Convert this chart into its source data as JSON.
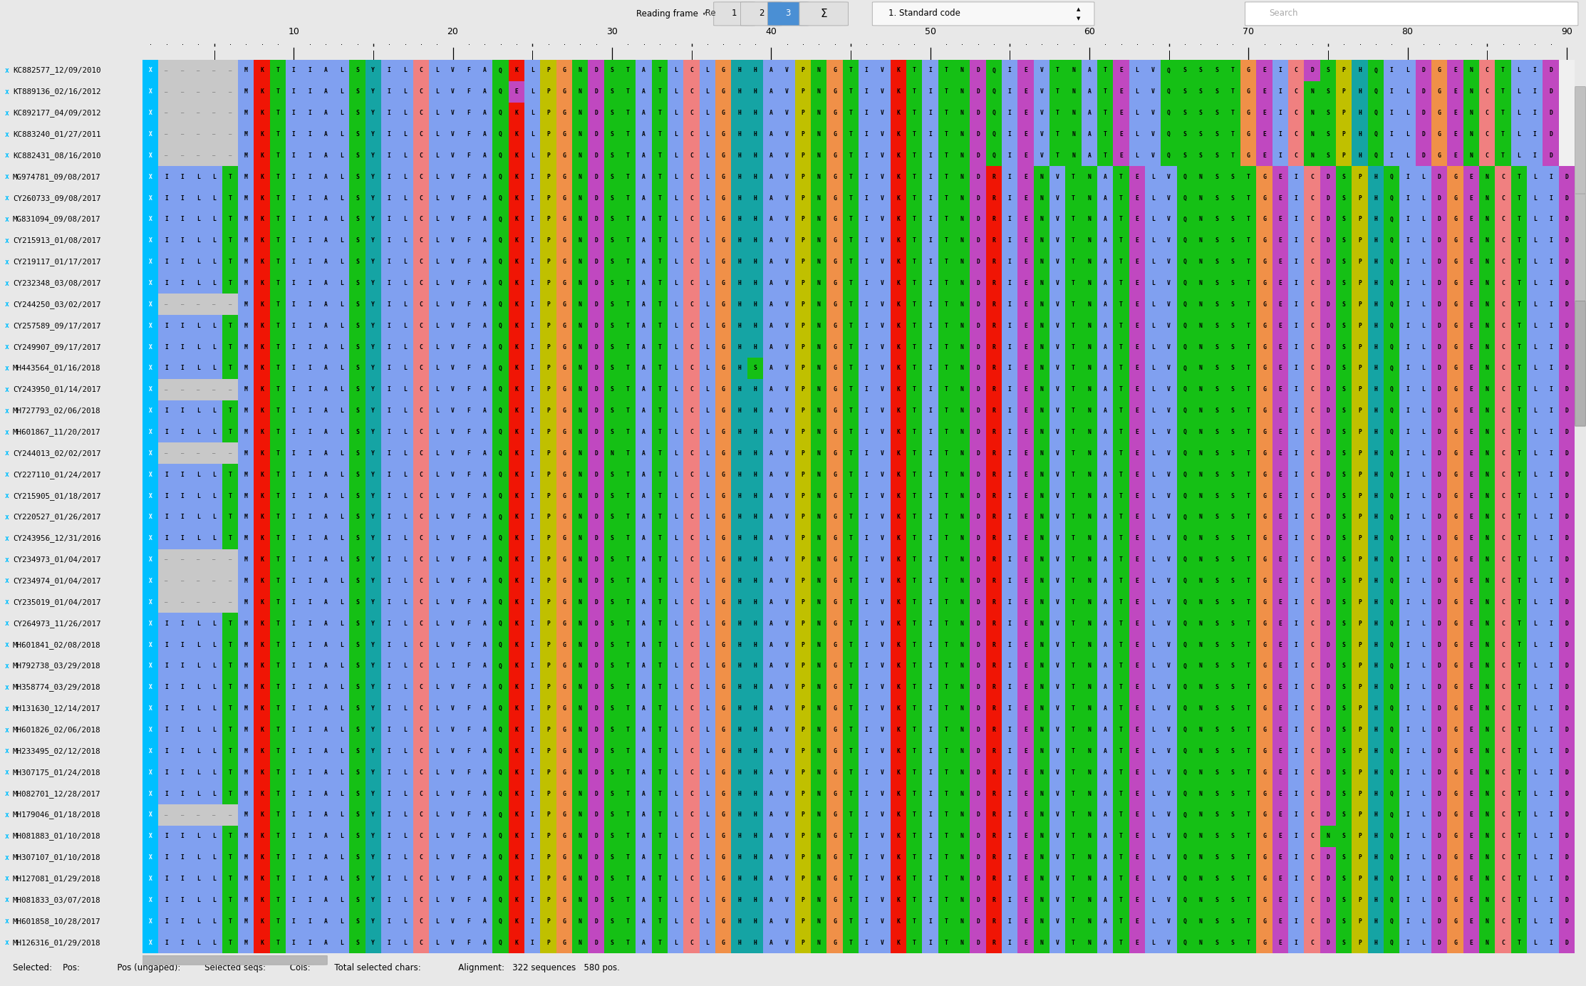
{
  "figure_width": 22.26,
  "figure_height": 13.84,
  "dpi": 100,
  "bg_color": "#e8e8e8",
  "toolbar_bg": "#d4d4d4",
  "seq_bg": "#f0f0f0",
  "name_bg": "#f8f8f8",
  "ruler_bg": "#f0f0f0",
  "footer_bg": "#e0e0e0",
  "footer_text": "Selected:    Pos:              Pos (ungaped):         Selected seqs:         Cols:         Total selected chars:              Alignment:   322 sequences   580 pos.",
  "selected_frame": "3",
  "frame_highlight_color": "#4a8fd4",
  "n_seqs": 42,
  "n_cols": 90,
  "seq_names": [
    "KC882577_12/09/2010",
    "KT889136_02/16/2012",
    "KC892177_04/09/2012",
    "KC883240_01/27/2011",
    "KC882431_08/16/2010",
    "MG974781_09/08/2017",
    "CY260733_09/08/2017",
    "MG831094_09/08/2017",
    "CY215913_01/08/2017",
    "CY219117_01/17/2017",
    "CY232348_03/08/2017",
    "CY244250_03/02/2017",
    "CY257589_09/17/2017",
    "CY249907_09/17/2017",
    "MH443564_01/16/2018",
    "CY243950_01/14/2017",
    "MH727793_02/06/2018",
    "MH601867_11/20/2017",
    "CY244013_02/02/2017",
    "CY227110_01/24/2017",
    "CY215905_01/18/2017",
    "CY220527_01/26/2017",
    "CY243956_12/31/2016",
    "CY234973_01/04/2017",
    "CY234974_01/04/2017",
    "CY235019_01/04/2017",
    "CY264973_11/26/2017",
    "MH601841_02/08/2018",
    "MH792738_03/29/2018",
    "MH358774_03/29/2018",
    "MH131630_12/14/2017",
    "MH601826_02/06/2018",
    "MH233495_02/12/2018",
    "MH307175_01/24/2018",
    "MH082701_12/28/2017",
    "MH179046_01/18/2018",
    "MH081883_01/10/2018",
    "MH307107_01/10/2018",
    "MH127081_01/29/2018",
    "MH081833_03/07/2018",
    "MH601858_10/28/2017",
    "MH126316_01/29/2018"
  ],
  "sequences": [
    "X-----MKTIIALSY ILCLVFAQKLPGNDSTATLCLGHHA VPNGTIVKTITNDQIEVTNATELVQSSSTGEICDSPHQILDGENCTLID",
    "X-----MKTIIALSY ILCLVFAQELPGNDSTATLCLGHHA VPNGTIVKTITNDQIEVTNATELVQSSSTGEICNSPHQILDGENCTLID",
    "X-----MKTIIALSY ILCLVFAQKLPGNDSTATLCLGHHA VPNGTIVKTITNDQIEVTNATELVQSSSTGEICNSPHQILDGENCTLID",
    "X-----MKTIIALSY ILCLVFAQKLPGNDSTATLCLGHHA VPNGTIVKTITNDQIEVTNATELVQSSSTGEICNSPHQILDGENCTLID",
    "X-----MKTIIALSY ILCLVFAQKLPGNDSTATLCLGHHA VPNGTIVKTITNDQIEVTNATELVQSSSTGEICNSPHQILDGENCTLID",
    "XIILLTMKTIIALSY ILCLVFAQKIPGNDSTATLCLGHHA VPNGTIVKTITNDRIENVTNATELVQNSSTGEICDSPHQILDGENCTLID",
    "XIILLTMKTIIALSY ILCLVFAQKIPGNDSTATLCLGHHA VPNGTIVKTITNDRIENVTNATELVQNSSTGEICDSPHQILDGENCTLID",
    "XIILLTMKTIIALSY ILCLVFAQKIPGNDSTATLCLGHHA VPNGTIVKTITNDRIENVTNATELVQNSSTGEICDSPHQILDGENCTLID",
    "XIILLTMKTIIALSY ILCLVFAQKIPGNDSTATLCLGHHA VPNGTIVKTITNDRIENVTNATELVQNSSTGEICDSPHQILDGENCTLID",
    "XIILLTMKTIIALSY ILCLVFAQKIPGNDSTATLCLGHHA VPNGTIVKTITNDRIENVTNATELVQNSSTGEICDSPHQILDGENCTLID",
    "XIILLTMKTIIALSY ILCLVFAQKIPGNDSTATLCLGHHA VPNGTIVKTITNDRIENVTNATELVQNSSTGEICDSPHQILDGENCTLID",
    "X-----MKTIIALSY ILCLVFAQKIPGNDSTATLCLGHHA VPNGTIVKTITNDRIENVTNATELVQNSSTGEICDSPHQILDGENCTLID",
    "XIILLTMKTIIALSY ILCLVFAQKIPGNDSTATLCLGHHA VPNGTIVKTITNDRIENVTNATELVQNSSTGEICDSPHQILDGENCTLID",
    "XIILLTMKTIIALSY ILCLVFAQKIPGNDSTATLCLGHHA VPNGTIVKTITNDRIENVTNATELVQNSSTGEICDSPHQILDGENCTLID",
    "XIILLTMKTIIALSY ILCLVFAQKIPGNDSTATLCLGHSA VPNGTIVKTITNDRIENVTNATELVQNSSTGEICDSPHQILDGENCTLID",
    "X-----MKTIIALSY ILCLVFAQKIPGNDSTATLCLGHHA VPNGTIVKTITNDRIENVTNATELVQNSSTGEICDSPHQILDGENCTLID",
    "XIILLTMKTIIALSY ILCLVFAQKIPGNDSTATLCLGHHA VPNGTIVKTITNDRIENVTNATELVQNSSTGEICDSPHQILDGENCTLID",
    "XIILLTMKTIIALSY ILCLVFAQKIPGNDSTATLCLGHHA VPNGTIVKTITNDRIENVTNATELVQNSSTGEICDSPHQILDGENCTLID",
    "X-----MKTIIALSY ILCLVFAQKIPGNDNTATLCLGHHA VPNGTIVKTITNDRIENVTNATELVQNSSTGEICDSPHQILDGENCTLID",
    "XIILLTMKTIIALSY ILCLVFAQKIPGNDSTATLCLGHHA VPNGTIVKTITNDRIENVTNATELVQNSSTGEICDSPHQILDGENCTLID",
    "XIILLTMKTIIALSY ILCLVFAQKIPGNDSTATLCLGHHA VPNGTIVKTITNDRIENVTNATELVQNSSTGEICDSPHQILDGENCTLID",
    "XIILLTMKTIIALSY ILCLVFAQKIPGNDSTATLCLGHHA VPNGTIVKTITNDRIENVTNATELVQNSSTGEICDSPHQILDGENCTLID",
    "XIILLTMKTIIALSY ILCLVFAQKIPGNDSTATLCLGHHA VPNGTIVKTITNDRIENVTNATELVQNSSTGEICDSPHQILDGENCTLID",
    "X-----MKTIIALSY ILCLVFAQKIPGNDSTATLCLGHHA VPNGTIVKTITNDRIENVTNATELVQNSSTGEICDSPHQILDGENCTLID",
    "X-----MKTIIALSY ILCLVFAQKIPGNDSTATLCLGHHA VPNGTIVKTITNDRIENVTNATELVQNSSTGEICDSPHQILDGENCTLID",
    "X-----MKTIIALSY ILCLVFAQKIPGNDSTATLCLGHHA VPNGTIVKTITNDRIENVTNATELVQNSSTGEICDSPHQILDGENCTLID",
    "XIILLTMKTIIALSY ILCLVFAQKIPGNDSTATLCLGHHA VPNGTIVKTITNDRIENVTNATELVQNSSTGEICDSPHQILDGENCTLID",
    "XIILLTMKTIIALSY ILCLVFAQKIPGNDSTATLCLGHHA VPNGTIVKTITNDRIENVTNATELVQNSSTGEICDSPHQILDGENCTLID",
    "XIILLTMKTIIALSY ILCLIFAQKIPGNDSTATLCLGHHA VPNGTIVKTITNDRIENVTNATELVQNSSTGEICDSPHQILDGENCTLID",
    "XIILLTMKTIIALSY ILCLVFAQKIPGNDSTATLCLGHHA VPNGTIVKTITNDRIENVTNATELVQNSSTGEICDSPHQILDGENCTLID",
    "XIILLTMKTIIALSY ILCLVFAQKIPGNDSTATLCLGHHA VPNGTIVKTITNDRIENVTNATELVQNSSTGEICDSPHQILDGENCTLID",
    "XIILLTMKTIIALSY ILCLVFAQKIPGNDSTATLCLGHHA VPNGTIVKTITNDRIENVTNATELVQNSSTGEICDSPHQILDGENCTLID",
    "XIILLTMKTIIALSY ILCLVFAQKIPGNDSTATLCLGHHA VPNGTIVKTITNDRIENVTNATELVQNSSTGEICDSPHQILDGENCTLID",
    "XIILLTMKTIIALSY ILCLVFAQKIPGNDSTATLCLGHHA VPNGTIVKTITNDRIENVTNATELVQNSSTGEICDSPHQILDGENCTLID",
    "XIILLTMKTIIALSY ILCLVFAQKIPGNDSTATLCLGHHA VPNGTIVKTITNDRIENVTNATELVQNSSTGEICDSPHQILDGENCTLID",
    "X-----MKTIIALSY ILCLVFAQKIPGNDSTATLCLGHHA VPNGTIVKTITNDRIENVTNATELVQNSSTGEICDSPHQILDGENCTLID",
    "XIILLTMKTIIALSY ILCLVFAQKIPGNDSTATLCLGHHA VPNGTIVKTITNDRIENVTNATELVQNSSTGEICNSPHQILDGENCTLID",
    "XIILLTMKTIIALSY ILCLVFAQKIPGNDSTATLCLGHHA VPNGTIVKTITNDRIENVTNATELVQNSSTGEICDSPHQILDGENCTLID",
    "XIILLTMKTIIALSY ILCLVFAQKIPGNDSTATLCLGHHA VPNGTIVKTITNDRIENVTNATELVQNSSTGEICDSPHQILDGENCTLID",
    "XIILLTMKTIIALSY ILCLVFAQKIPGNDSTATLCLGHHA VPNGTIVKTITNDRIENVTNATELVQNSSTGEICDSPHQILDGENCTLID",
    "XIILLTMKTIIALSY ILCLVFAQKIPGNDSTATLCLGHHA VPNGTIVKTITNDRIENVTNATELVQNSSTGEICDSPHQILDGENCTLID",
    "XIILLTMKTIIALSY ILCLVFAQKIPGNDSTATLCLGHHA VPNGTIVKTITNDRIENVTNATELVQNSSTGEICDSPHQILDGENCTLID"
  ],
  "aa_colors": {
    "A": "#80a0f0",
    "C": "#f08080",
    "D": "#c048c0",
    "E": "#c048c0",
    "F": "#80a0f0",
    "G": "#f09048",
    "H": "#15a4a4",
    "I": "#80a0f0",
    "K": "#f01505",
    "L": "#80a0f0",
    "M": "#80a0f0",
    "N": "#15c015",
    "P": "#c0c000",
    "Q": "#15c015",
    "R": "#f01505",
    "S": "#15c015",
    "T": "#15c015",
    "V": "#80a0f0",
    "W": "#80a0f0",
    "X": "#00bfff",
    "Y": "#15a4a4",
    "-": "#c8c8c8",
    " ": "#f0f0f0"
  }
}
